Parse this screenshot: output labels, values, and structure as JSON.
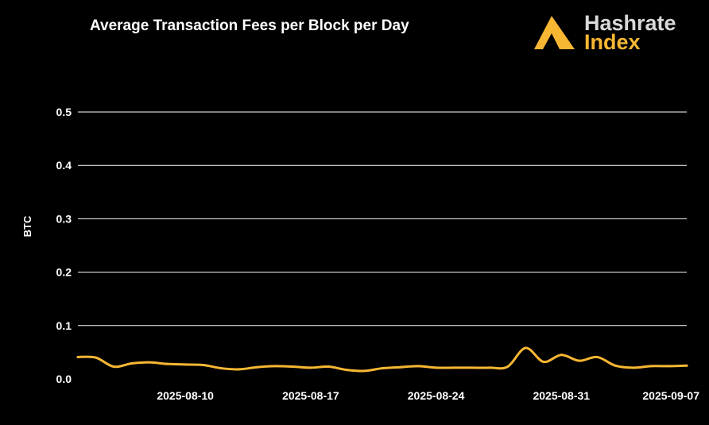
{
  "logo": {
    "line1": "Hashrate",
    "line2": "Index",
    "icon": "triangle-logo-icon"
  },
  "colors": {
    "background": "#000000",
    "accent": "#f7b733",
    "text": "#ffffff",
    "grid": "#ffffff"
  },
  "chart_data": {
    "type": "line",
    "title": "Average Transaction Fees per Block per Day",
    "xlabel": "",
    "ylabel": "BTC",
    "ylim": [
      0,
      0.5
    ],
    "yticks": [
      "0.0",
      "0.1",
      "0.2",
      "0.3",
      "0.4",
      "0.5"
    ],
    "xlim": [
      "2025-08-04",
      "2025-09-07"
    ],
    "xticks": [
      "2025-08-10",
      "2025-08-17",
      "2025-08-24",
      "2025-08-31",
      "2025-09-07"
    ],
    "grid": true,
    "legend": "none",
    "series": [
      {
        "color": "#f7b733",
        "x": [
          "2025-08-04",
          "2025-08-05",
          "2025-08-06",
          "2025-08-07",
          "2025-08-08",
          "2025-08-09",
          "2025-08-10",
          "2025-08-11",
          "2025-08-12",
          "2025-08-13",
          "2025-08-14",
          "2025-08-15",
          "2025-08-16",
          "2025-08-17",
          "2025-08-18",
          "2025-08-19",
          "2025-08-20",
          "2025-08-21",
          "2025-08-22",
          "2025-08-23",
          "2025-08-24",
          "2025-08-25",
          "2025-08-26",
          "2025-08-27",
          "2025-08-28",
          "2025-08-29",
          "2025-08-30",
          "2025-08-31",
          "2025-09-01",
          "2025-09-02",
          "2025-09-03",
          "2025-09-04",
          "2025-09-05",
          "2025-09-06",
          "2025-09-07"
        ],
        "values": [
          0.041,
          0.04,
          0.023,
          0.029,
          0.031,
          0.028,
          0.027,
          0.026,
          0.02,
          0.018,
          0.022,
          0.024,
          0.023,
          0.021,
          0.023,
          0.017,
          0.015,
          0.02,
          0.022,
          0.024,
          0.021,
          0.021,
          0.021,
          0.021,
          0.023,
          0.058,
          0.032,
          0.045,
          0.034,
          0.041,
          0.025,
          0.021,
          0.024,
          0.024,
          0.025
        ]
      }
    ]
  }
}
